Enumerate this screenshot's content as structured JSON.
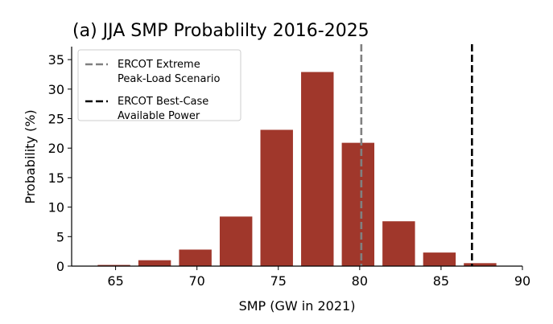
{
  "chart_data": {
    "type": "bar",
    "title": "(a) JJA SMP Probablilty 2016-2025",
    "xlabel": "SMP (GW in 2021)",
    "ylabel": "Probability (%)",
    "xlim": [
      62.3,
      90
    ],
    "ylim": [
      0,
      37.2
    ],
    "xticks": [
      "65",
      "70",
      "75",
      "80",
      "85",
      "90"
    ],
    "yticks": [
      "0",
      "5",
      "10",
      "15",
      "20",
      "25",
      "30",
      "35"
    ],
    "bar_width": 2,
    "bar_color": "#a0372b",
    "bars": [
      {
        "x": 64.9,
        "value": 0.2
      },
      {
        "x": 67.4,
        "value": 1.0
      },
      {
        "x": 69.9,
        "value": 2.8
      },
      {
        "x": 72.4,
        "value": 8.4
      },
      {
        "x": 74.9,
        "value": 23.1
      },
      {
        "x": 77.4,
        "value": 32.9
      },
      {
        "x": 79.9,
        "value": 20.9
      },
      {
        "x": 82.4,
        "value": 7.6
      },
      {
        "x": 84.9,
        "value": 2.3
      },
      {
        "x": 87.4,
        "value": 0.5
      }
    ],
    "vlines": [
      {
        "x": 80.1,
        "color": "#808080",
        "style": "dashed",
        "label_lines": [
          "ERCOT Extreme",
          "Peak-Load Scenario"
        ]
      },
      {
        "x": 86.9,
        "color": "#000000",
        "style": "dashed",
        "label_lines": [
          "ERCOT Best-Case",
          "Available Power"
        ]
      }
    ],
    "legend_position": "top-left",
    "grid": false
  }
}
